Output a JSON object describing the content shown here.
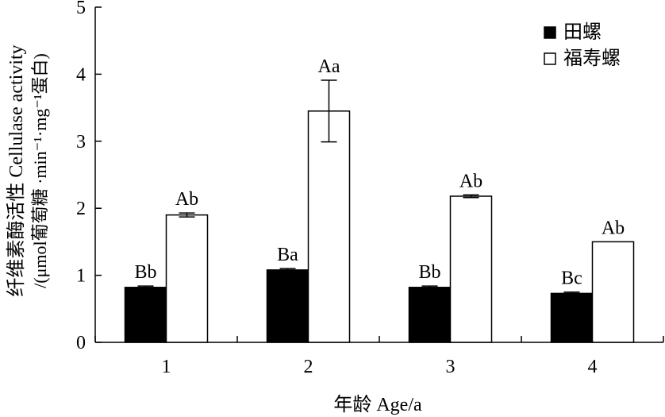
{
  "chart_data": {
    "type": "bar",
    "categories": [
      "1",
      "2",
      "3",
      "4"
    ],
    "series": [
      {
        "name": "田螺",
        "values": [
          0.82,
          1.08,
          0.82,
          0.73
        ],
        "errors": [
          0.02,
          0.02,
          0.02,
          0.02
        ],
        "labels": [
          "Bb",
          "Ba",
          "Bb",
          "Bc"
        ],
        "color": "#000000"
      },
      {
        "name": "福寿螺",
        "values": [
          1.9,
          3.45,
          2.18,
          1.5
        ],
        "errors": [
          0.03,
          0.46,
          0.02,
          0.0
        ],
        "labels": [
          "Ab",
          "Aa",
          "Ab",
          "Ab"
        ],
        "color": "#ffffff"
      }
    ],
    "xlabel": "年龄 Age/a",
    "ylabel_line1": "纤维素酶活性 Cellulase activity",
    "ylabel_line2": "/(μmol葡萄糖 ·min⁻¹·mg⁻¹蛋白)",
    "ylim": [
      0,
      5
    ],
    "yticks": [
      "0",
      "1",
      "2",
      "3",
      "4",
      "5"
    ],
    "legend_position": "top-right",
    "grid": false
  }
}
